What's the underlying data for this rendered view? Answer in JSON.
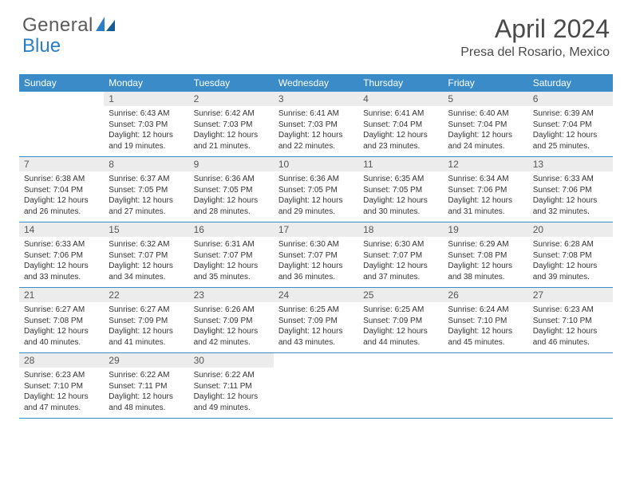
{
  "logo": {
    "text_general": "General",
    "text_blue": "Blue"
  },
  "title": "April 2024",
  "location": "Presa del Rosario, Mexico",
  "colors": {
    "header_bg": "#3b8bc9",
    "header_text": "#ffffff",
    "daynum_bg": "#ececec",
    "cell_border": "#3b8bc9",
    "logo_gray": "#5a5a5a",
    "logo_blue": "#2b7dc4",
    "title_color": "#4a4a4a",
    "body_text": "#333333",
    "background": "#ffffff"
  },
  "typography": {
    "title_fontsize": 32,
    "location_fontsize": 16,
    "header_fontsize": 12,
    "daynum_fontsize": 12,
    "body_fontsize": 10,
    "logo_fontsize": 24
  },
  "weekdays": [
    "Sunday",
    "Monday",
    "Tuesday",
    "Wednesday",
    "Thursday",
    "Friday",
    "Saturday"
  ],
  "weeks": [
    [
      null,
      {
        "n": "1",
        "sr": "Sunrise: 6:43 AM",
        "ss": "Sunset: 7:03 PM",
        "dl1": "Daylight: 12 hours",
        "dl2": "and 19 minutes."
      },
      {
        "n": "2",
        "sr": "Sunrise: 6:42 AM",
        "ss": "Sunset: 7:03 PM",
        "dl1": "Daylight: 12 hours",
        "dl2": "and 21 minutes."
      },
      {
        "n": "3",
        "sr": "Sunrise: 6:41 AM",
        "ss": "Sunset: 7:03 PM",
        "dl1": "Daylight: 12 hours",
        "dl2": "and 22 minutes."
      },
      {
        "n": "4",
        "sr": "Sunrise: 6:41 AM",
        "ss": "Sunset: 7:04 PM",
        "dl1": "Daylight: 12 hours",
        "dl2": "and 23 minutes."
      },
      {
        "n": "5",
        "sr": "Sunrise: 6:40 AM",
        "ss": "Sunset: 7:04 PM",
        "dl1": "Daylight: 12 hours",
        "dl2": "and 24 minutes."
      },
      {
        "n": "6",
        "sr": "Sunrise: 6:39 AM",
        "ss": "Sunset: 7:04 PM",
        "dl1": "Daylight: 12 hours",
        "dl2": "and 25 minutes."
      }
    ],
    [
      {
        "n": "7",
        "sr": "Sunrise: 6:38 AM",
        "ss": "Sunset: 7:04 PM",
        "dl1": "Daylight: 12 hours",
        "dl2": "and 26 minutes."
      },
      {
        "n": "8",
        "sr": "Sunrise: 6:37 AM",
        "ss": "Sunset: 7:05 PM",
        "dl1": "Daylight: 12 hours",
        "dl2": "and 27 minutes."
      },
      {
        "n": "9",
        "sr": "Sunrise: 6:36 AM",
        "ss": "Sunset: 7:05 PM",
        "dl1": "Daylight: 12 hours",
        "dl2": "and 28 minutes."
      },
      {
        "n": "10",
        "sr": "Sunrise: 6:36 AM",
        "ss": "Sunset: 7:05 PM",
        "dl1": "Daylight: 12 hours",
        "dl2": "and 29 minutes."
      },
      {
        "n": "11",
        "sr": "Sunrise: 6:35 AM",
        "ss": "Sunset: 7:05 PM",
        "dl1": "Daylight: 12 hours",
        "dl2": "and 30 minutes."
      },
      {
        "n": "12",
        "sr": "Sunrise: 6:34 AM",
        "ss": "Sunset: 7:06 PM",
        "dl1": "Daylight: 12 hours",
        "dl2": "and 31 minutes."
      },
      {
        "n": "13",
        "sr": "Sunrise: 6:33 AM",
        "ss": "Sunset: 7:06 PM",
        "dl1": "Daylight: 12 hours",
        "dl2": "and 32 minutes."
      }
    ],
    [
      {
        "n": "14",
        "sr": "Sunrise: 6:33 AM",
        "ss": "Sunset: 7:06 PM",
        "dl1": "Daylight: 12 hours",
        "dl2": "and 33 minutes."
      },
      {
        "n": "15",
        "sr": "Sunrise: 6:32 AM",
        "ss": "Sunset: 7:07 PM",
        "dl1": "Daylight: 12 hours",
        "dl2": "and 34 minutes."
      },
      {
        "n": "16",
        "sr": "Sunrise: 6:31 AM",
        "ss": "Sunset: 7:07 PM",
        "dl1": "Daylight: 12 hours",
        "dl2": "and 35 minutes."
      },
      {
        "n": "17",
        "sr": "Sunrise: 6:30 AM",
        "ss": "Sunset: 7:07 PM",
        "dl1": "Daylight: 12 hours",
        "dl2": "and 36 minutes."
      },
      {
        "n": "18",
        "sr": "Sunrise: 6:30 AM",
        "ss": "Sunset: 7:07 PM",
        "dl1": "Daylight: 12 hours",
        "dl2": "and 37 minutes."
      },
      {
        "n": "19",
        "sr": "Sunrise: 6:29 AM",
        "ss": "Sunset: 7:08 PM",
        "dl1": "Daylight: 12 hours",
        "dl2": "and 38 minutes."
      },
      {
        "n": "20",
        "sr": "Sunrise: 6:28 AM",
        "ss": "Sunset: 7:08 PM",
        "dl1": "Daylight: 12 hours",
        "dl2": "and 39 minutes."
      }
    ],
    [
      {
        "n": "21",
        "sr": "Sunrise: 6:27 AM",
        "ss": "Sunset: 7:08 PM",
        "dl1": "Daylight: 12 hours",
        "dl2": "and 40 minutes."
      },
      {
        "n": "22",
        "sr": "Sunrise: 6:27 AM",
        "ss": "Sunset: 7:09 PM",
        "dl1": "Daylight: 12 hours",
        "dl2": "and 41 minutes."
      },
      {
        "n": "23",
        "sr": "Sunrise: 6:26 AM",
        "ss": "Sunset: 7:09 PM",
        "dl1": "Daylight: 12 hours",
        "dl2": "and 42 minutes."
      },
      {
        "n": "24",
        "sr": "Sunrise: 6:25 AM",
        "ss": "Sunset: 7:09 PM",
        "dl1": "Daylight: 12 hours",
        "dl2": "and 43 minutes."
      },
      {
        "n": "25",
        "sr": "Sunrise: 6:25 AM",
        "ss": "Sunset: 7:09 PM",
        "dl1": "Daylight: 12 hours",
        "dl2": "and 44 minutes."
      },
      {
        "n": "26",
        "sr": "Sunrise: 6:24 AM",
        "ss": "Sunset: 7:10 PM",
        "dl1": "Daylight: 12 hours",
        "dl2": "and 45 minutes."
      },
      {
        "n": "27",
        "sr": "Sunrise: 6:23 AM",
        "ss": "Sunset: 7:10 PM",
        "dl1": "Daylight: 12 hours",
        "dl2": "and 46 minutes."
      }
    ],
    [
      {
        "n": "28",
        "sr": "Sunrise: 6:23 AM",
        "ss": "Sunset: 7:10 PM",
        "dl1": "Daylight: 12 hours",
        "dl2": "and 47 minutes."
      },
      {
        "n": "29",
        "sr": "Sunrise: 6:22 AM",
        "ss": "Sunset: 7:11 PM",
        "dl1": "Daylight: 12 hours",
        "dl2": "and 48 minutes."
      },
      {
        "n": "30",
        "sr": "Sunrise: 6:22 AM",
        "ss": "Sunset: 7:11 PM",
        "dl1": "Daylight: 12 hours",
        "dl2": "and 49 minutes."
      },
      null,
      null,
      null,
      null
    ]
  ]
}
